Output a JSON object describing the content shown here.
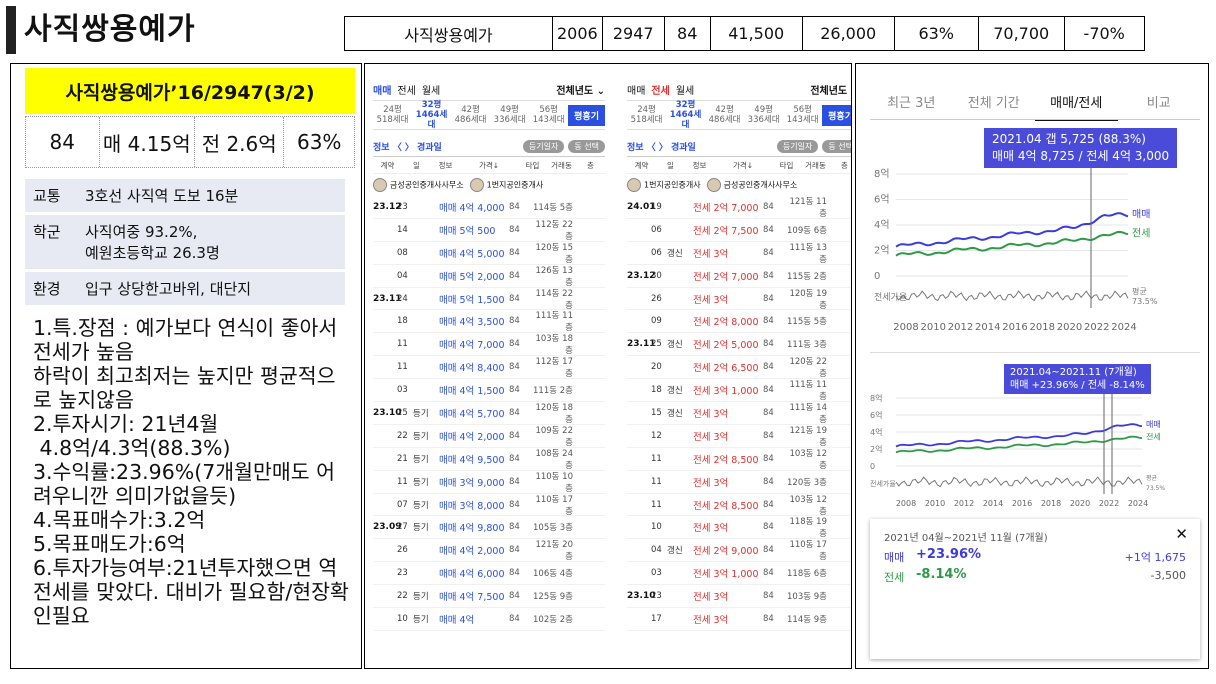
{
  "title": "사직쌍용예가",
  "summary": [
    "사직쌍용예가",
    "2006",
    "2947",
    "84",
    "41,500",
    "26,000",
    "63%",
    "70,700",
    "-70%"
  ],
  "left": {
    "header": "사직쌍용예가’16/2947(3/2)",
    "stats": [
      "84",
      "매 4.15억",
      "전 2.6억",
      "63%"
    ],
    "info": [
      {
        "k": "교통",
        "v": "3호선 사직역 도보 16분"
      },
      {
        "k": "학군",
        "v": "사직여중 93.2%,\n예원초등학교 26.3명"
      },
      {
        "k": "환경",
        "v": "입구 상당한고바위, 대단지"
      }
    ],
    "notes": "1.특.장점 : 예가보다 연식이 좋아서 전세가 높음\n하락이 최고최저는 높지만 평균적으로 높지않음\n2.투자시기: 21년4월\n 4.8억/4.3억(88.3%)\n3.수익률:23.96%(7개월만매도 어려우니깐 의미가없을듯)\n4.목표매수가:3.2억\n5.목표매도가:6억\n6.투자가능여부:21년투자했으면 역전세를 맞았다. 대비가 필요함/현장확인필요"
  },
  "mid": {
    "tabs": [
      "매매",
      "전세",
      "월세"
    ],
    "sort": "전체년도 ⌄",
    "pyeong": [
      {
        "a": "24평",
        "b": "518세대"
      },
      {
        "a": "32평",
        "b": "1464세대"
      },
      {
        "a": "42평",
        "b": "486세대"
      },
      {
        "a": "49평",
        "b": "336세대"
      },
      {
        "a": "56평",
        "b": "143세대"
      }
    ],
    "pyeong_btn": "평흥기",
    "filter_left": "정보 〈 〉 경과일",
    "pill1": "등기일자",
    "pill2": "동 선택",
    "headers": [
      "계약",
      "일",
      "정보",
      "가격↓",
      "타입",
      "거래동",
      "층"
    ],
    "brokers_left": [
      "금성공인중개사사무소",
      "1번지공인중개사"
    ],
    "brokers_right": [
      "1번지공인중개사",
      "금성공인중개사사무소"
    ],
    "left_rows": [
      {
        "ym": "23.12",
        "d": "23",
        "t": "",
        "p": "매매 4억 4,000",
        "s": "84",
        "g": "114동 5층"
      },
      {
        "ym": "",
        "d": "14",
        "t": "",
        "p": "매매 5억 500",
        "s": "84",
        "g": "112동 22층"
      },
      {
        "ym": "",
        "d": "08",
        "t": "",
        "p": "매매 4억 5,000",
        "s": "84",
        "g": "120동 15층"
      },
      {
        "ym": "",
        "d": "04",
        "t": "",
        "p": "매매 5억 2,000",
        "s": "84",
        "g": "126동 13층"
      },
      {
        "ym": "23.11",
        "d": "24",
        "t": "",
        "p": "매매 5억 1,500",
        "s": "84",
        "g": "114동 22층"
      },
      {
        "ym": "",
        "d": "18",
        "t": "",
        "p": "매매 4억 3,500",
        "s": "84",
        "g": "111동 11층"
      },
      {
        "ym": "",
        "d": "11",
        "t": "",
        "p": "매매 4억 7,000",
        "s": "84",
        "g": "103동 18층"
      },
      {
        "ym": "",
        "d": "11",
        "t": "",
        "p": "매매 4억 8,400",
        "s": "84",
        "g": "112동 17층"
      },
      {
        "ym": "",
        "d": "03",
        "t": "",
        "p": "매매 4억 1,500",
        "s": "84",
        "g": "111동 2층"
      },
      {
        "ym": "23.10",
        "d": "25",
        "t": "등기",
        "p": "매매 4억 5,700",
        "s": "84",
        "g": "120동 18층"
      },
      {
        "ym": "",
        "d": "22",
        "t": "등기",
        "p": "매매 4억 2,000",
        "s": "84",
        "g": "109동 22층"
      },
      {
        "ym": "",
        "d": "21",
        "t": "등기",
        "p": "매매 4억 9,500",
        "s": "84",
        "g": "108동 24층"
      },
      {
        "ym": "",
        "d": "11",
        "t": "등기",
        "p": "매매 3억 9,000",
        "s": "84",
        "g": "110동 10층"
      },
      {
        "ym": "",
        "d": "07",
        "t": "등기",
        "p": "매매 3억 8,000",
        "s": "84",
        "g": "110동 17층"
      },
      {
        "ym": "23.09",
        "d": "27",
        "t": "등기",
        "p": "매매 4억 9,800",
        "s": "84",
        "g": "105동 3층"
      },
      {
        "ym": "",
        "d": "26",
        "t": "",
        "p": "매매 4억 2,000",
        "s": "84",
        "g": "121동 20층"
      },
      {
        "ym": "",
        "d": "23",
        "t": "",
        "p": "매매 4억 6,000",
        "s": "84",
        "g": "106동 4층"
      },
      {
        "ym": "",
        "d": "22",
        "t": "등기",
        "p": "매매 4억 7,500",
        "s": "84",
        "g": "125동 9층"
      },
      {
        "ym": "",
        "d": "10",
        "t": "등기",
        "p": "매매 4억",
        "s": "84",
        "g": "102동 2층"
      }
    ],
    "right_rows": [
      {
        "ym": "24.01",
        "d": "19",
        "t": "",
        "p": "전세 2억 7,000",
        "s": "84",
        "g": "121동 11층"
      },
      {
        "ym": "",
        "d": "06",
        "t": "",
        "p": "전세 2억 7,500",
        "s": "84",
        "g": "109동 6층"
      },
      {
        "ym": "",
        "d": "06",
        "t": "갱신",
        "p": "전세 3억",
        "s": "84",
        "g": "111동 13층"
      },
      {
        "ym": "23.12",
        "d": "30",
        "t": "",
        "p": "전세 2억 7,000",
        "s": "84",
        "g": "115동 2층"
      },
      {
        "ym": "",
        "d": "26",
        "t": "",
        "p": "전세 3억",
        "s": "84",
        "g": "120동 19층"
      },
      {
        "ym": "",
        "d": "09",
        "t": "",
        "p": "전세 2억 8,000",
        "s": "84",
        "g": "115동 5층"
      },
      {
        "ym": "23.11",
        "d": "25",
        "t": "갱신",
        "p": "전세 2억 5,000",
        "s": "84",
        "g": "111동 3층"
      },
      {
        "ym": "",
        "d": "20",
        "t": "",
        "p": "전세 2억 6,500",
        "s": "84",
        "g": "120동 22층"
      },
      {
        "ym": "",
        "d": "18",
        "t": "갱신",
        "p": "전세 3억 1,000",
        "s": "84",
        "g": "111동 11층"
      },
      {
        "ym": "",
        "d": "15",
        "t": "갱신",
        "p": "전세 3억",
        "s": "84",
        "g": "111동 14층"
      },
      {
        "ym": "",
        "d": "12",
        "t": "",
        "p": "전세 3억",
        "s": "84",
        "g": "121동 19층"
      },
      {
        "ym": "",
        "d": "11",
        "t": "",
        "p": "전세 2억 8,500",
        "s": "84",
        "g": "103동 12층"
      },
      {
        "ym": "",
        "d": "11",
        "t": "",
        "p": "전세 3억",
        "s": "84",
        "g": "120동 3층"
      },
      {
        "ym": "",
        "d": "11",
        "t": "",
        "p": "전세 2억 8,500",
        "s": "84",
        "g": "103동 12층"
      },
      {
        "ym": "",
        "d": "10",
        "t": "",
        "p": "전세 3억",
        "s": "84",
        "g": "118동 19층"
      },
      {
        "ym": "",
        "d": "04",
        "t": "갱신",
        "p": "전세 2억 9,000",
        "s": "84",
        "g": "110동 17층"
      },
      {
        "ym": "",
        "d": "03",
        "t": "",
        "p": "전세 3억 1,000",
        "s": "84",
        "g": "118동 6층"
      },
      {
        "ym": "23.10",
        "d": "23",
        "t": "",
        "p": "전세 3억",
        "s": "84",
        "g": "103동 9층"
      },
      {
        "ym": "",
        "d": "17",
        "t": "",
        "p": "전세 3억",
        "s": "84",
        "g": "114동 9층"
      }
    ]
  },
  "right": {
    "tabs": [
      "최근 3년",
      "전체 기간",
      "매매/전세",
      "비교"
    ],
    "tooltip1": [
      "2021.04 갭 5,725 (88.3%)",
      "매매 4억 8,725 / 전세 4억 3,000"
    ],
    "tooltip2": [
      "2021.04~2021.11 (7개월)",
      "매매 +23.96% / 전세 -8.14%"
    ],
    "yticks": [
      "8억",
      "6억",
      "4억",
      "2억",
      "0"
    ],
    "years": [
      "2008",
      "2010",
      "2012",
      "2014",
      "2016",
      "2018",
      "2020",
      "2022",
      "2024"
    ],
    "label_sale": "매매",
    "label_rent": "전세",
    "label_ratio": "전세가율",
    "label_avg": "평균",
    "avg_value": "73.5%",
    "period_title": "2021년 04월~2021년 11월 (7개월)",
    "close": "✕",
    "sale_pct": "+23.96%",
    "sale_amt": "+1억 1,675",
    "rent_pct": "-8.14%",
    "rent_amt": "-3,500",
    "colors": {
      "sale": "#3b3bdd",
      "rent": "#2e9a48",
      "ratio": "#777777"
    }
  }
}
